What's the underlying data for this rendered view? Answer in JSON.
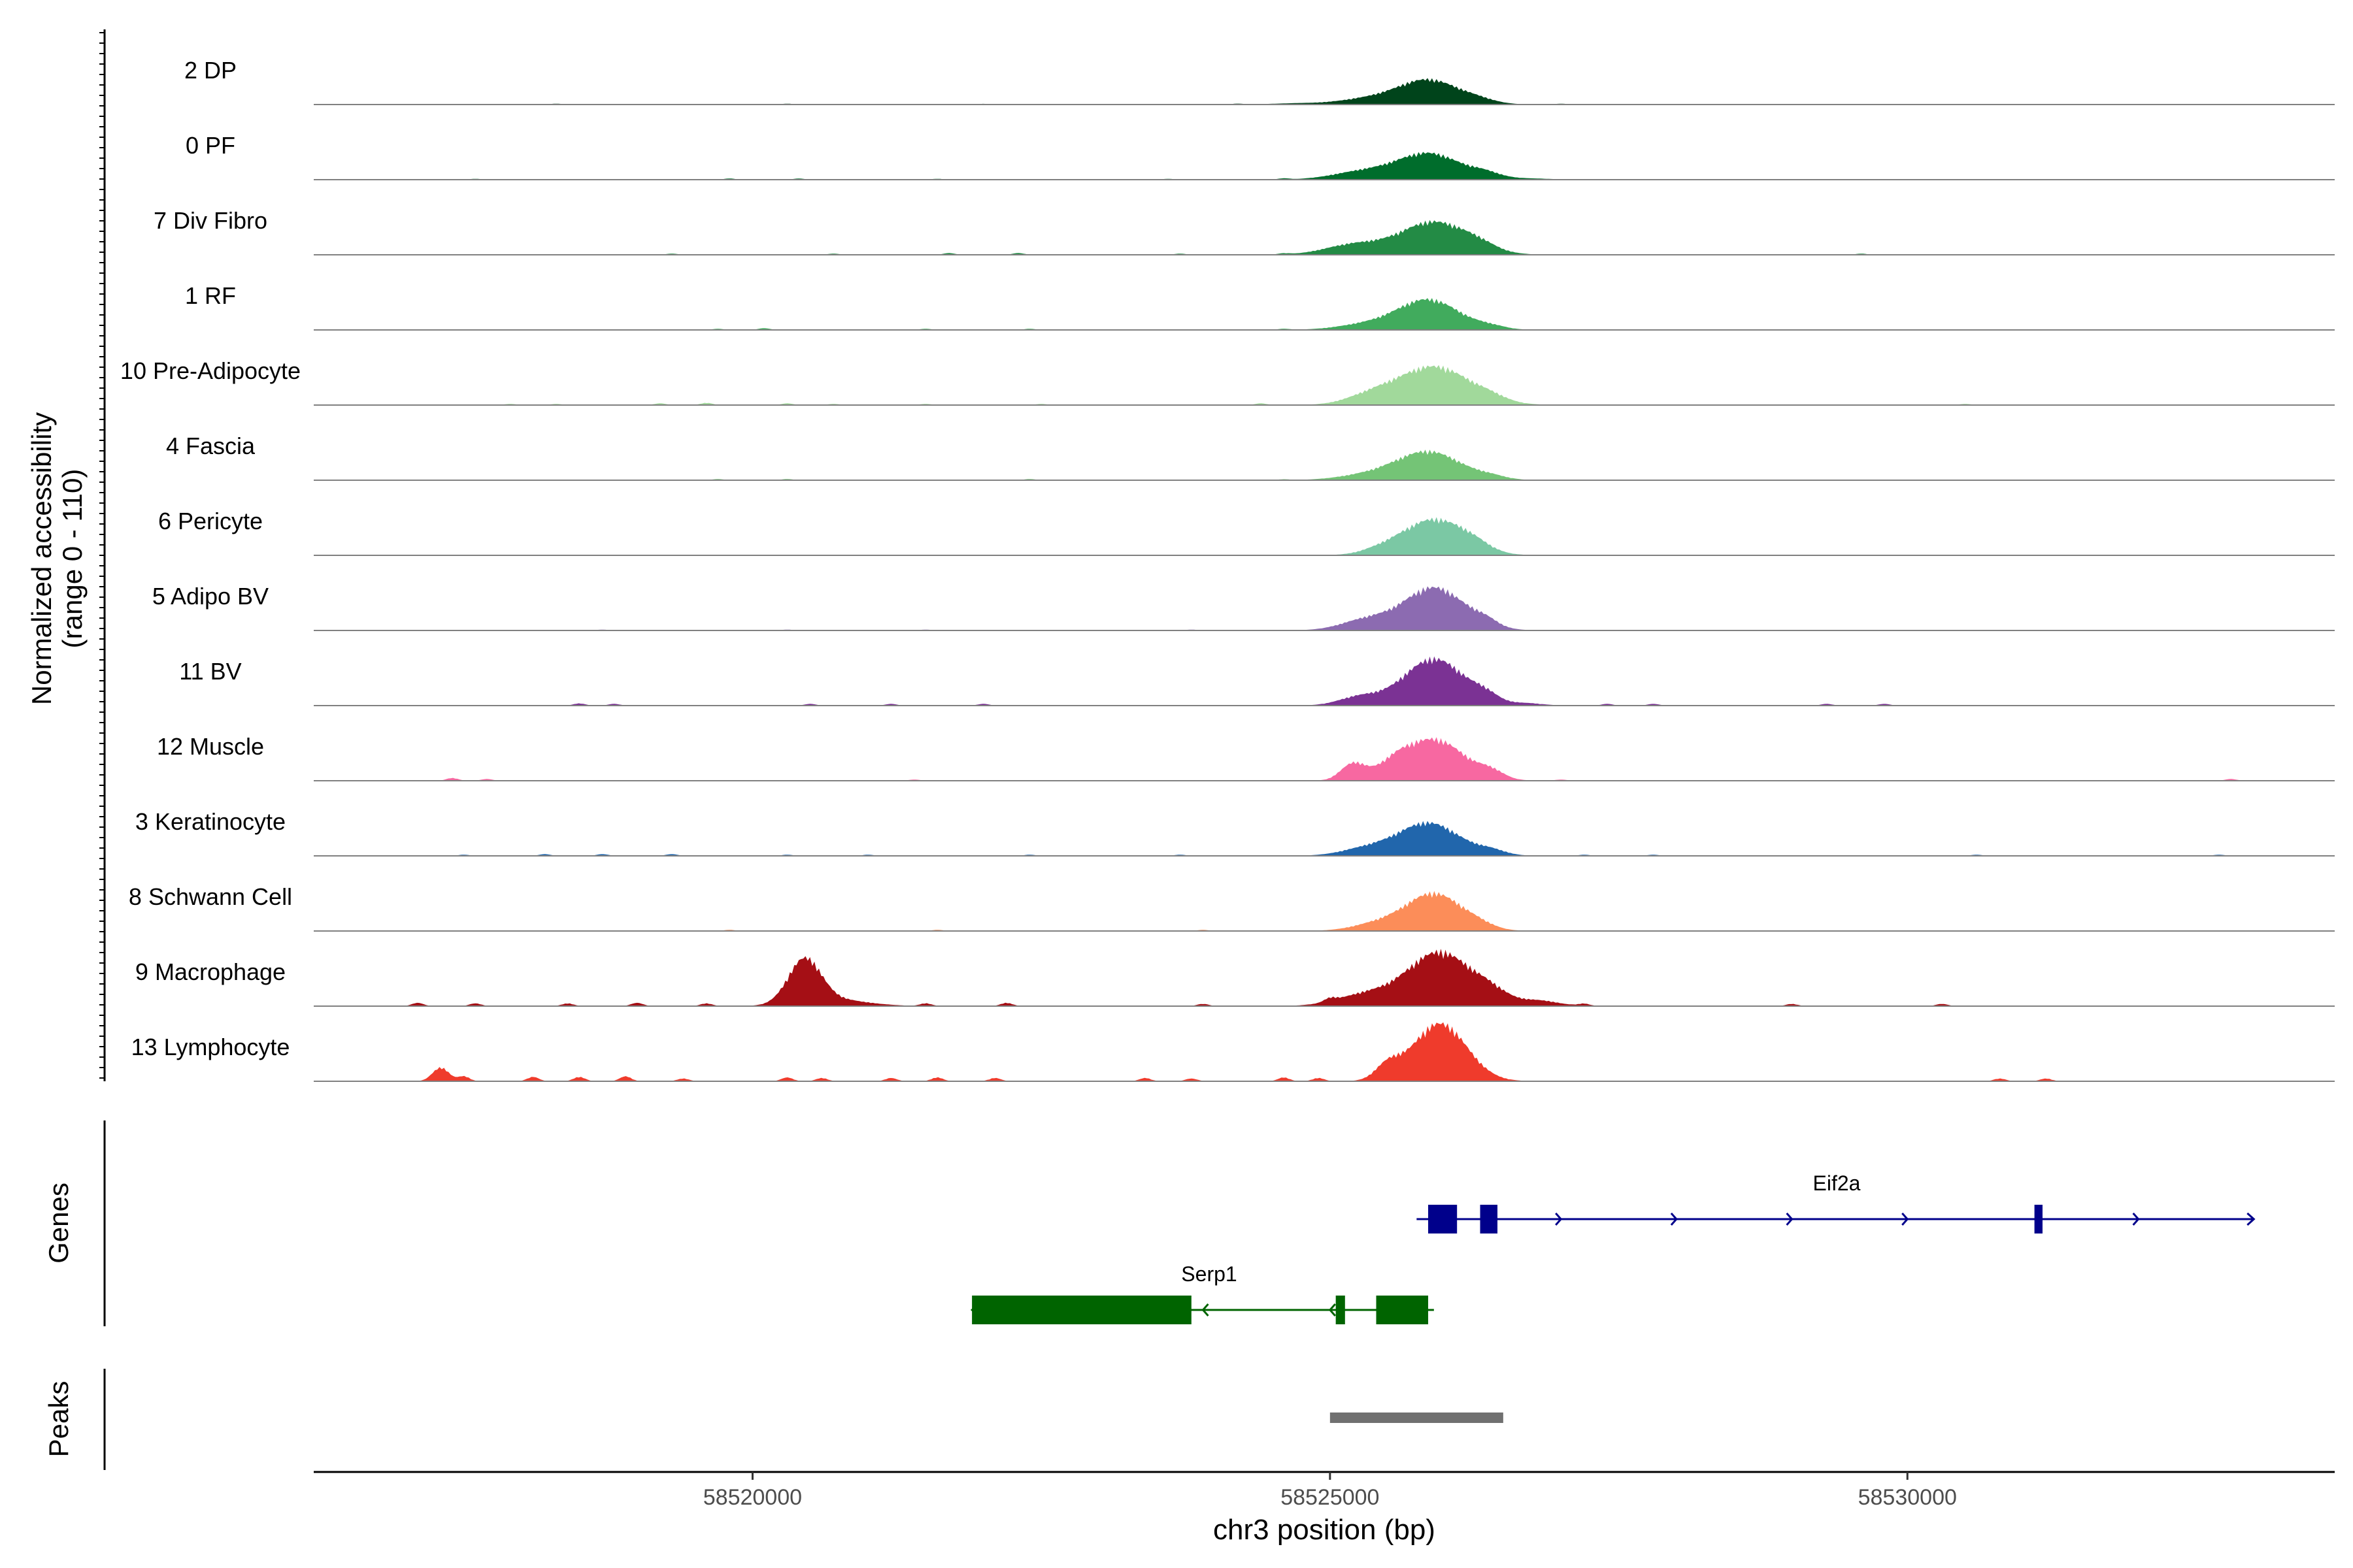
{
  "chart_data": {
    "type": "area",
    "subtype": "coverage-tracks",
    "chromosome": "chr3",
    "xlim": [
      58516200,
      58533700
    ],
    "xlabel": "chr3 position (bp)",
    "x_ticks": [
      58520000,
      58525000,
      58530000
    ],
    "x_tick_labels": [
      "58520000",
      "58525000",
      "58530000"
    ],
    "ylabel_line1": "Normalized accessibility",
    "ylabel_line2": "(range 0 - 110)",
    "ylim": [
      0,
      110
    ],
    "grid": false,
    "tracks": [
      {
        "name": "2 DP",
        "color": "#00441b",
        "peaks": [
          [
            58525850,
            45,
            380
          ],
          [
            58525300,
            9,
            350
          ],
          [
            58526300,
            5,
            200
          ],
          [
            58524700,
            2,
            300
          ]
        ],
        "noise": [
          [
            58518300,
            1.5
          ],
          [
            58520300,
            1.5
          ],
          [
            58522000,
            1.2
          ],
          [
            58524200,
            1.5
          ],
          [
            58527000,
            1.5
          ]
        ]
      },
      {
        "name": "0 PF",
        "color": "#006d2c",
        "peaks": [
          [
            58525850,
            48,
            400
          ],
          [
            58525250,
            13,
            350
          ],
          [
            58526350,
            8,
            180
          ],
          [
            58526700,
            2,
            300
          ]
        ],
        "noise": [
          [
            58517600,
            1.5
          ],
          [
            58519800,
            2
          ],
          [
            58520400,
            2
          ],
          [
            58521600,
            1.5
          ],
          [
            58523600,
            1.5
          ],
          [
            58524600,
            2
          ]
        ]
      },
      {
        "name": "7 Div Fibro",
        "color": "#238b45",
        "peaks": [
          [
            58525900,
            60,
            420
          ],
          [
            58525200,
            18,
            350
          ],
          [
            58526300,
            8,
            200
          ]
        ],
        "noise": [
          [
            58519300,
            2
          ],
          [
            58520700,
            2
          ],
          [
            58521700,
            3
          ],
          [
            58522300,
            3
          ],
          [
            58523700,
            2
          ],
          [
            58524600,
            2
          ],
          [
            58529600,
            2
          ]
        ]
      },
      {
        "name": "1 RF",
        "color": "#41ab5d",
        "peaks": [
          [
            58525850,
            55,
            380
          ],
          [
            58525300,
            9,
            350
          ],
          [
            58526400,
            5,
            180
          ]
        ],
        "noise": [
          [
            58519700,
            2
          ],
          [
            58520100,
            3
          ],
          [
            58521500,
            2
          ],
          [
            58522400,
            2
          ],
          [
            58524600,
            2
          ]
        ]
      },
      {
        "name": "10 Pre-Adipocyte",
        "color": "#a1d99b",
        "peaks": [
          [
            58525900,
            70,
            450
          ],
          [
            58525350,
            14,
            300
          ],
          [
            58526400,
            6,
            180
          ]
        ],
        "noise": [
          [
            58517900,
            2
          ],
          [
            58518300,
            2
          ],
          [
            58519200,
            3
          ],
          [
            58519600,
            4
          ],
          [
            58520300,
            3
          ],
          [
            58520700,
            2
          ],
          [
            58521500,
            2
          ],
          [
            58522500,
            2
          ],
          [
            58524400,
            3
          ],
          [
            58530500,
            2
          ]
        ]
      },
      {
        "name": "4 Fascia",
        "color": "#74c476",
        "peaks": [
          [
            58525850,
            52,
            400
          ],
          [
            58525300,
            8,
            350
          ],
          [
            58526400,
            5,
            180
          ]
        ],
        "noise": [
          [
            58519700,
            2
          ],
          [
            58520300,
            2
          ],
          [
            58522400,
            2
          ],
          [
            58524600,
            1.5
          ]
        ]
      },
      {
        "name": "6 Pericyte",
        "color": "#7bc8a4",
        "peaks": [
          [
            58525900,
            65,
            380
          ],
          [
            58525450,
            8,
            250
          ],
          [
            58526250,
            10,
            200
          ]
        ],
        "noise": [
          [
            58517000,
            1
          ],
          [
            58517800,
            1
          ],
          [
            58519300,
            1
          ],
          [
            58520600,
            1
          ],
          [
            58521900,
            1
          ],
          [
            58524200,
            1
          ],
          [
            58527300,
            1
          ]
        ]
      },
      {
        "name": "5 Adipo BV",
        "color": "#8c6bb1",
        "peaks": [
          [
            58525900,
            78,
            380
          ],
          [
            58525300,
            18,
            300
          ],
          [
            58526350,
            10,
            150
          ]
        ],
        "noise": [
          [
            58518700,
            1.5
          ],
          [
            58520300,
            1.5
          ],
          [
            58521500,
            1.5
          ],
          [
            58523800,
            1.5
          ]
        ]
      },
      {
        "name": "11 BV",
        "color": "#7b3294",
        "peaks": [
          [
            58525900,
            85,
            380
          ],
          [
            58525250,
            15,
            250
          ],
          [
            58526350,
            12,
            150
          ],
          [
            58526700,
            4,
            200
          ]
        ],
        "noise": [
          [
            58518500,
            4
          ],
          [
            58518800,
            3
          ],
          [
            58520500,
            3
          ],
          [
            58521200,
            3
          ],
          [
            58522000,
            3
          ],
          [
            58527400,
            3
          ],
          [
            58527800,
            3
          ],
          [
            58529300,
            3
          ],
          [
            58529800,
            3
          ]
        ]
      },
      {
        "name": "12 Muscle",
        "color": "#f768a1",
        "peaks": [
          [
            58525900,
            75,
            380
          ],
          [
            58525200,
            30,
            150
          ],
          [
            58525550,
            18,
            200
          ],
          [
            58526400,
            12,
            150
          ]
        ],
        "noise": [
          [
            58517400,
            5
          ],
          [
            58517700,
            3
          ],
          [
            58521400,
            2
          ],
          [
            58527000,
            2
          ],
          [
            58532800,
            3
          ]
        ]
      },
      {
        "name": "3 Keratinocyte",
        "color": "#2166ac",
        "peaks": [
          [
            58525850,
            60,
            380
          ],
          [
            58525300,
            12,
            300
          ],
          [
            58526400,
            8,
            180
          ]
        ],
        "noise": [
          [
            58517500,
            2
          ],
          [
            58518200,
            3
          ],
          [
            58518700,
            3
          ],
          [
            58519300,
            3
          ],
          [
            58520300,
            2
          ],
          [
            58521000,
            2
          ],
          [
            58522400,
            2
          ],
          [
            58523700,
            2
          ],
          [
            58527200,
            2
          ],
          [
            58527800,
            2
          ],
          [
            58530600,
            2
          ],
          [
            58532700,
            2
          ]
        ]
      },
      {
        "name": "8 Schwann Cell",
        "color": "#fc8d59",
        "peaks": [
          [
            58525900,
            68,
            350
          ],
          [
            58525400,
            12,
            300
          ],
          [
            58526300,
            6,
            180
          ]
        ],
        "noise": [
          [
            58519800,
            2
          ],
          [
            58521600,
            2
          ],
          [
            58523900,
            2
          ]
        ]
      },
      {
        "name": "9 Macrophage",
        "color": "#a50f15",
        "peaks": [
          [
            58525950,
            98,
            400
          ],
          [
            58520450,
            80,
            200
          ],
          [
            58525300,
            20,
            350
          ],
          [
            58526400,
            16,
            200
          ],
          [
            58526800,
            10,
            250
          ],
          [
            58520700,
            12,
            400
          ]
        ],
        "noise": [
          [
            58517100,
            6
          ],
          [
            58517600,
            5
          ],
          [
            58518400,
            5
          ],
          [
            58519000,
            6
          ],
          [
            58519600,
            5
          ],
          [
            58521500,
            5
          ],
          [
            58522200,
            6
          ],
          [
            58523900,
            4
          ],
          [
            58525000,
            6
          ],
          [
            58527200,
            4
          ],
          [
            58529000,
            4
          ],
          [
            58530300,
            4
          ]
        ]
      },
      {
        "name": "13 Lymphocyte",
        "color": "#ef3b2c",
        "peaks": [
          [
            58525950,
            105,
            330
          ],
          [
            58525500,
            25,
            150
          ],
          [
            58517300,
            25,
            100
          ]
        ],
        "noise": [
          [
            58517500,
            9
          ],
          [
            58518100,
            8
          ],
          [
            58518500,
            8
          ],
          [
            58518900,
            9
          ],
          [
            58519400,
            5
          ],
          [
            58520300,
            7
          ],
          [
            58520600,
            6
          ],
          [
            58521200,
            6
          ],
          [
            58521600,
            7
          ],
          [
            58522100,
            6
          ],
          [
            58523400,
            6
          ],
          [
            58523800,
            5
          ],
          [
            58524600,
            7
          ],
          [
            58524900,
            6
          ],
          [
            58530800,
            5
          ],
          [
            58531200,
            5
          ]
        ]
      }
    ],
    "genes_label": "Genes",
    "genes": [
      {
        "name": "Eif2a",
        "strand": "+",
        "color": "#00008b",
        "start": 58525750,
        "end": 58533000,
        "exons": [
          [
            58525850,
            58526100,
            "thick"
          ],
          [
            58526300,
            58526450,
            "thick"
          ],
          [
            58531100,
            58531170,
            "thick"
          ]
        ],
        "arrows": [
          58527000,
          58528000,
          58529000,
          58530000,
          58532000
        ]
      },
      {
        "name": "Serp1",
        "strand": "-",
        "color": "#006400",
        "start": 58521900,
        "end": 58525900,
        "exons": [
          [
            58521900,
            58523800,
            "thick"
          ],
          [
            58525050,
            58525130,
            "thick"
          ],
          [
            58525400,
            58525850,
            "thick"
          ]
        ],
        "arrows": [
          58523900,
          58525000
        ]
      }
    ],
    "peaks_label": "Peaks",
    "peak_regions": [
      [
        58525000,
        58526500
      ]
    ],
    "peak_color": "#707070"
  }
}
